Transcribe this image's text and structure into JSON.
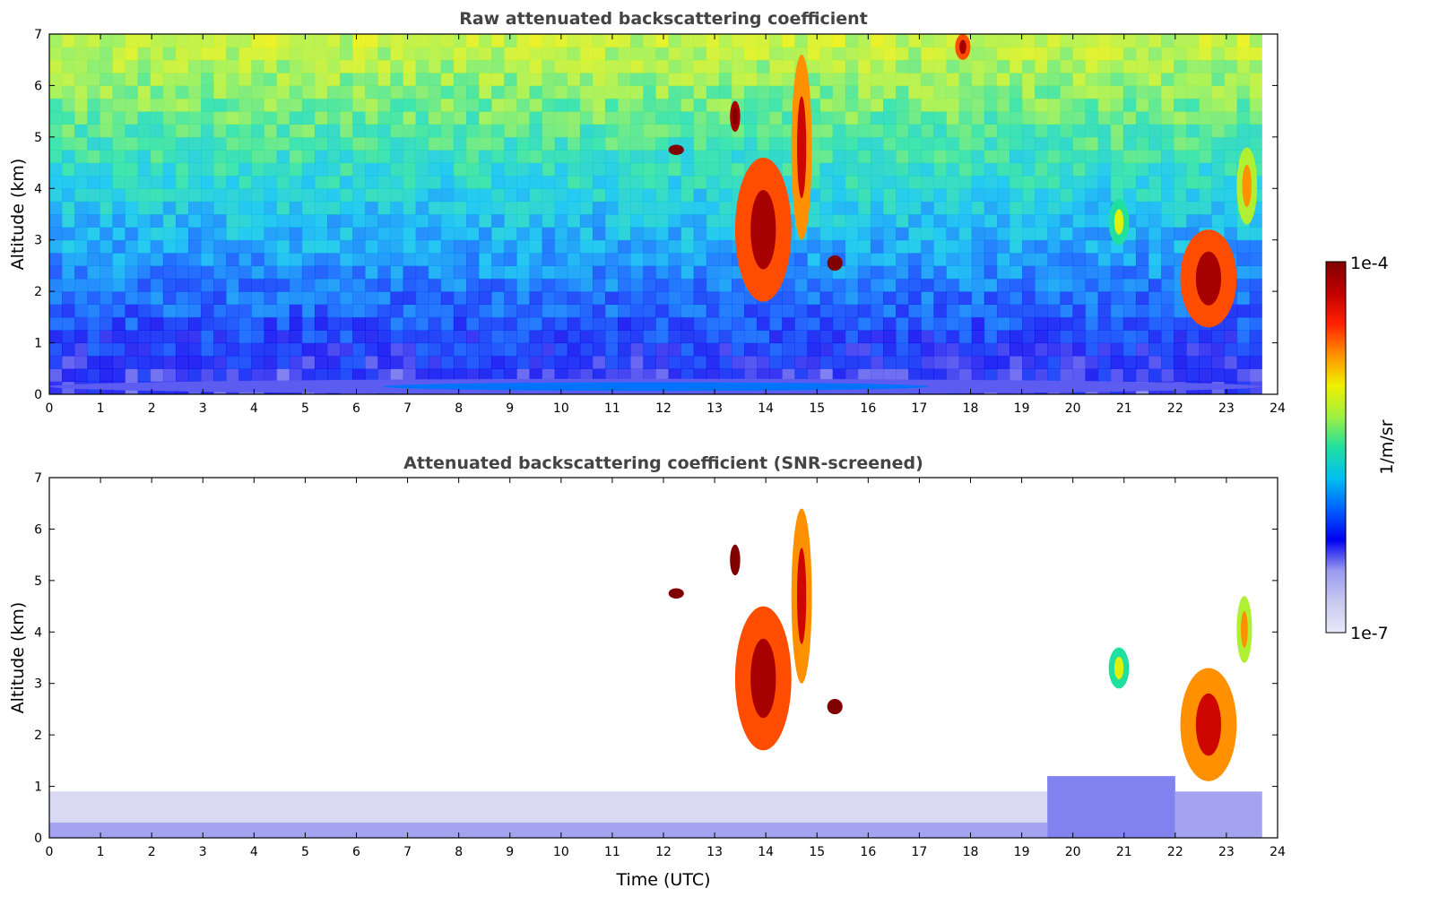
{
  "chart_data": [
    {
      "type": "heatmap",
      "title": "Raw attenuated backscattering coefficient",
      "xlabel": "",
      "ylabel": "Altitude (km)",
      "xlim": [
        0,
        24
      ],
      "ylim": [
        0,
        7
      ],
      "x_ticks": [
        "0",
        "1",
        "2",
        "3",
        "4",
        "5",
        "6",
        "7",
        "8",
        "9",
        "10",
        "11",
        "12",
        "13",
        "14",
        "15",
        "16",
        "17",
        "18",
        "19",
        "20",
        "21",
        "22",
        "23",
        "24"
      ],
      "y_ticks": [
        "0",
        "1",
        "2",
        "3",
        "4",
        "5",
        "6",
        "7"
      ],
      "data_end_time": 23.7,
      "features": [
        {
          "name": "boundary-layer",
          "t0": 0,
          "t1": 23.7,
          "h0": 0,
          "h1": 0.3,
          "level": 0.2
        },
        {
          "name": "cloud-4.7km",
          "t0": 12.1,
          "t1": 12.4,
          "h0": 4.65,
          "h1": 4.85,
          "level": 1.0
        },
        {
          "name": "cloud-5.4km",
          "t0": 13.3,
          "t1": 13.5,
          "h0": 5.1,
          "h1": 5.7,
          "level": 0.95
        },
        {
          "name": "cloud-3.5km",
          "t0": 13.4,
          "t1": 14.5,
          "h0": 1.8,
          "h1": 4.6,
          "level": 0.8
        },
        {
          "name": "cloud-fallstreak",
          "t0": 14.5,
          "t1": 14.9,
          "h0": 3.0,
          "h1": 6.6,
          "level": 0.75
        },
        {
          "name": "cloud-2.5km",
          "t0": 15.2,
          "t1": 15.5,
          "h0": 2.4,
          "h1": 2.7,
          "level": 1.0
        },
        {
          "name": "cloud-6.7km",
          "t0": 17.7,
          "t1": 18.0,
          "h0": 6.5,
          "h1": 7.0,
          "level": 0.8
        },
        {
          "name": "cloud-3.3km",
          "t0": 20.7,
          "t1": 21.1,
          "h0": 2.9,
          "h1": 3.8,
          "level": 0.5
        },
        {
          "name": "cloud-2km",
          "t0": 22.1,
          "t1": 23.2,
          "h0": 1.3,
          "h1": 3.2,
          "level": 0.8
        },
        {
          "name": "cloud-4km",
          "t0": 23.2,
          "t1": 23.6,
          "h0": 3.3,
          "h1": 4.8,
          "level": 0.6
        }
      ]
    },
    {
      "type": "heatmap",
      "title": "Attenuated backscattering coefficient (SNR-screened)",
      "xlabel": "Time (UTC)",
      "ylabel": "Altitude (km)",
      "xlim": [
        0,
        24
      ],
      "ylim": [
        0,
        7
      ],
      "x_ticks": [
        "0",
        "1",
        "2",
        "3",
        "4",
        "5",
        "6",
        "7",
        "8",
        "9",
        "10",
        "11",
        "12",
        "13",
        "14",
        "15",
        "16",
        "17",
        "18",
        "19",
        "20",
        "21",
        "22",
        "23",
        "24"
      ],
      "y_ticks": [
        "0",
        "1",
        "2",
        "3",
        "4",
        "5",
        "6",
        "7"
      ],
      "data_end_time": 23.7,
      "boundary_layer": [
        {
          "t0": 0,
          "t1": 19.5,
          "h0": 0,
          "h1": 0.3,
          "level": 0.15
        },
        {
          "t0": 0,
          "t1": 19.5,
          "h0": 0.3,
          "h1": 0.9,
          "level": 0.04
        },
        {
          "t0": 19.5,
          "t1": 22.0,
          "h0": 0,
          "h1": 1.2,
          "level": 0.18
        },
        {
          "t0": 22.0,
          "t1": 23.7,
          "h0": 0,
          "h1": 0.9,
          "level": 0.15
        }
      ],
      "features": [
        {
          "name": "cloud-4.7km",
          "t0": 12.1,
          "t1": 12.4,
          "h0": 4.65,
          "h1": 4.85,
          "level": 1.0
        },
        {
          "name": "cloud-5.4km",
          "t0": 13.3,
          "t1": 13.5,
          "h0": 5.1,
          "h1": 5.7,
          "level": 1.0
        },
        {
          "name": "cloud-3.5km",
          "t0": 13.4,
          "t1": 14.5,
          "h0": 1.7,
          "h1": 4.5,
          "level": 0.8
        },
        {
          "name": "cloud-fallstreak",
          "t0": 14.5,
          "t1": 14.9,
          "h0": 3.0,
          "h1": 6.4,
          "level": 0.75
        },
        {
          "name": "cloud-2.5km",
          "t0": 15.2,
          "t1": 15.5,
          "h0": 2.4,
          "h1": 2.7,
          "level": 1.0
        },
        {
          "name": "cloud-3.3km",
          "t0": 20.7,
          "t1": 21.1,
          "h0": 2.9,
          "h1": 3.7,
          "level": 0.5
        },
        {
          "name": "cloud-2km",
          "t0": 22.1,
          "t1": 23.2,
          "h0": 1.1,
          "h1": 3.3,
          "level": 0.75
        },
        {
          "name": "cloud-4km",
          "t0": 23.2,
          "t1": 23.5,
          "h0": 3.4,
          "h1": 4.7,
          "level": 0.6
        }
      ]
    }
  ],
  "colorbar": {
    "label": "1/m/sr",
    "max_label": "1e-4",
    "min_label": "1e-7",
    "colormap": [
      "#e8e8f8",
      "#c8c8f0",
      "#9a9af0",
      "#0000f0",
      "#0060ff",
      "#00c0f0",
      "#20e0a0",
      "#a0f040",
      "#f0f000",
      "#ff9000",
      "#ff2000",
      "#c00000",
      "#800000"
    ]
  }
}
